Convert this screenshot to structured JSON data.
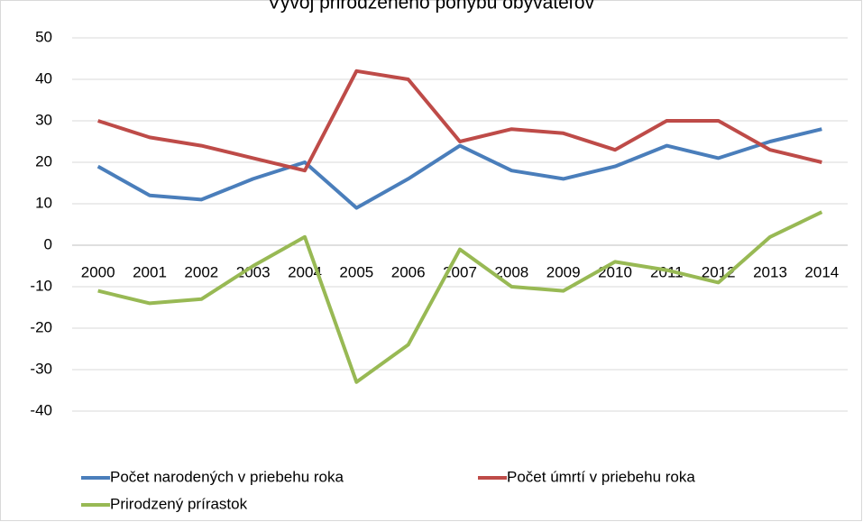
{
  "chart_data": {
    "type": "line",
    "title": "Vývoj prirodzeného pohybu obyvateľov",
    "categories": [
      "2000",
      "2001",
      "2002",
      "2003",
      "2004",
      "2005",
      "2006",
      "2007",
      "2008",
      "2009",
      "2010",
      "2011",
      "2012",
      "2013",
      "2014"
    ],
    "series": [
      {
        "name": "Počet narodených v priebehu roka",
        "color": "#4a7ebb",
        "values": [
          19,
          12,
          11,
          16,
          20,
          9,
          16,
          24,
          18,
          16,
          19,
          24,
          21,
          25,
          28
        ]
      },
      {
        "name": "Počet úmrtí v priebehu roka",
        "color": "#be4b48",
        "values": [
          30,
          26,
          24,
          21,
          18,
          42,
          40,
          25,
          28,
          27,
          23,
          30,
          30,
          23,
          20
        ]
      },
      {
        "name": "Prirodzený prírastok",
        "color": "#98b954",
        "values": [
          -11,
          -14,
          -13,
          -5,
          2,
          -33,
          -24,
          -1,
          -10,
          -11,
          -4,
          -6,
          -9,
          2,
          8
        ]
      }
    ],
    "ylim": [
      -40,
      50
    ],
    "yticks": [
      -40,
      -30,
      -20,
      -10,
      0,
      10,
      20,
      30,
      40,
      50
    ],
    "grid": true,
    "legend": "bottom"
  }
}
